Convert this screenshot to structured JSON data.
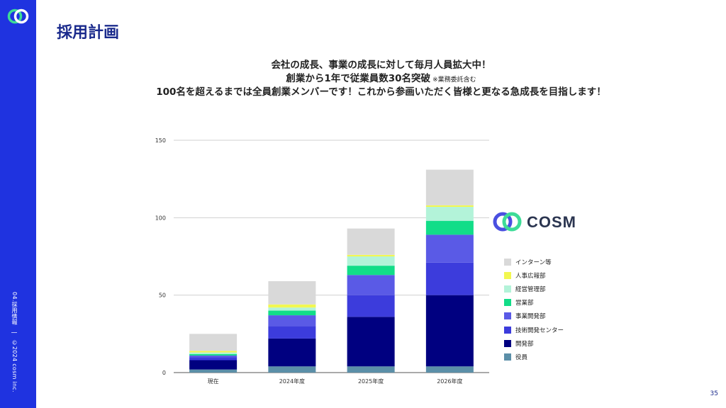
{
  "sidebar": {
    "footer_section": "04.採用情報",
    "footer_separator": "|",
    "footer_copyright": "©2024 cosm inc."
  },
  "page": {
    "title": "採用計画",
    "headline_1": "会社の成長、事業の成長に対して毎月人員拡大中！",
    "headline_2": "創業から1年で従業員数30名突破",
    "headline_2_note": "※業務委託含む",
    "headline_3": "100名を超えるまでは全員創業メンバーです！これから参画いただく皆様と更なる急成長を目指します！",
    "page_number": "35"
  },
  "brand": {
    "name": "COSM",
    "colors": {
      "ring_green": "#3ddc97",
      "ring_blue": "#4a4fe0"
    }
  },
  "chart_data": {
    "type": "bar",
    "stacked": true,
    "categories": [
      "現在",
      "2024年度",
      "2025年度",
      "2026年度"
    ],
    "ylim": [
      0,
      150
    ],
    "yticks": [
      0,
      50,
      100,
      150
    ],
    "grid": true,
    "legend_position": "right",
    "series": [
      {
        "name": "役員",
        "color": "#5b8fa8",
        "values": [
          2,
          4,
          4,
          4
        ]
      },
      {
        "name": "開発部",
        "color": "#000080",
        "values": [
          6,
          18,
          32,
          46
        ]
      },
      {
        "name": "技術開発センター",
        "color": "#3c3cdc",
        "values": [
          2,
          8,
          14,
          21
        ]
      },
      {
        "name": "事業開発部",
        "color": "#5a5ae6",
        "values": [
          1,
          7,
          13,
          18
        ]
      },
      {
        "name": "営業部",
        "color": "#12dd88",
        "values": [
          1,
          3,
          6,
          9
        ]
      },
      {
        "name": "経営管理部",
        "color": "#b3f3d9",
        "values": [
          1,
          2,
          6,
          9
        ]
      },
      {
        "name": "人事広報部",
        "color": "#f2f750",
        "values": [
          1,
          2,
          1,
          1
        ]
      },
      {
        "name": "インターン等",
        "color": "#d9d9d9",
        "values": [
          11,
          15,
          17,
          23
        ]
      }
    ]
  }
}
